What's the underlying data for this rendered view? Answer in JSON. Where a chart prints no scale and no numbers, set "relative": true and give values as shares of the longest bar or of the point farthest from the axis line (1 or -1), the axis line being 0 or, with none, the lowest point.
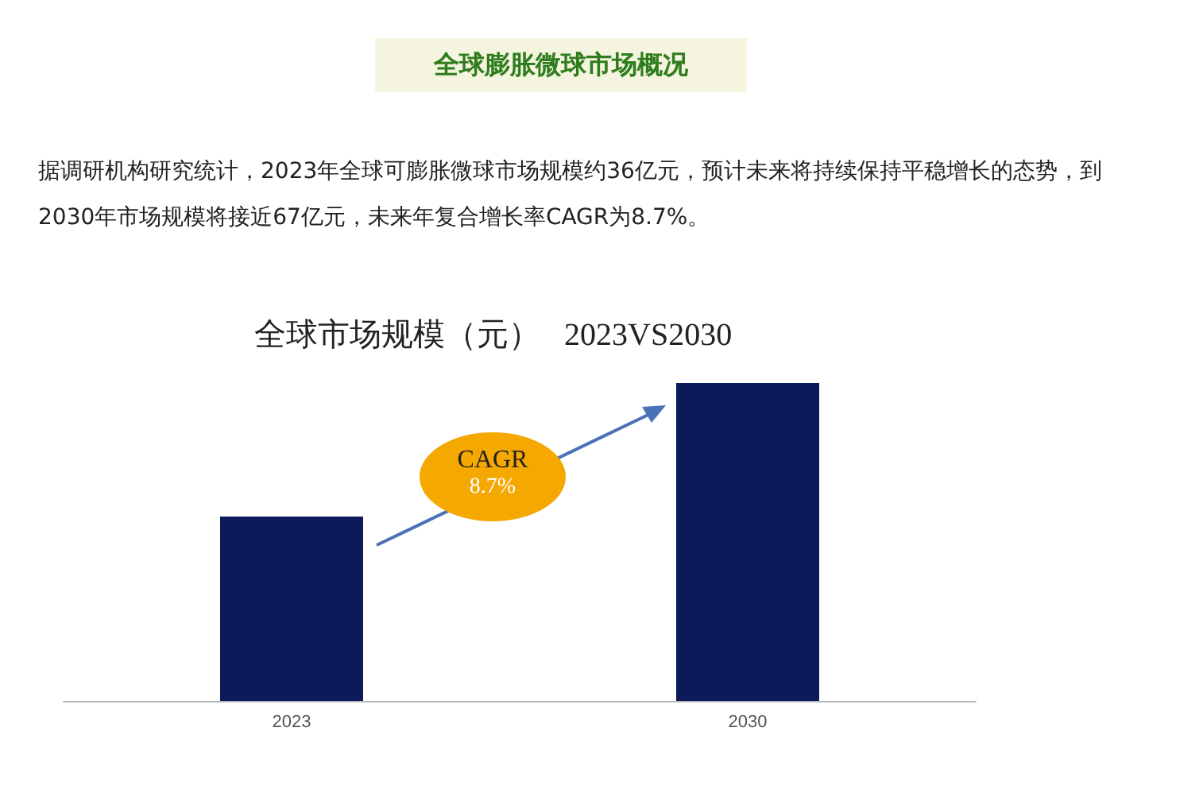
{
  "chart_data": {
    "type": "bar",
    "title": "全球膨胀微球市场概况",
    "subtitle": "全球市场规模（元）   2023VS2030",
    "categories": [
      "2023",
      "2030"
    ],
    "values": [
      0.58,
      1
    ],
    "color": "#0c1a5a",
    "relative": true,
    "annotations": [
      "据调研机构研究统计，2023年全球可膨胀微球市场规模约36亿元，预计未来将持续保持平稳增长的态势，到2030年市场规模将接近67亿元，未来年复合增长率CAGR为8.7%。",
      "CAGR",
      "8.7%"
    ]
  }
}
